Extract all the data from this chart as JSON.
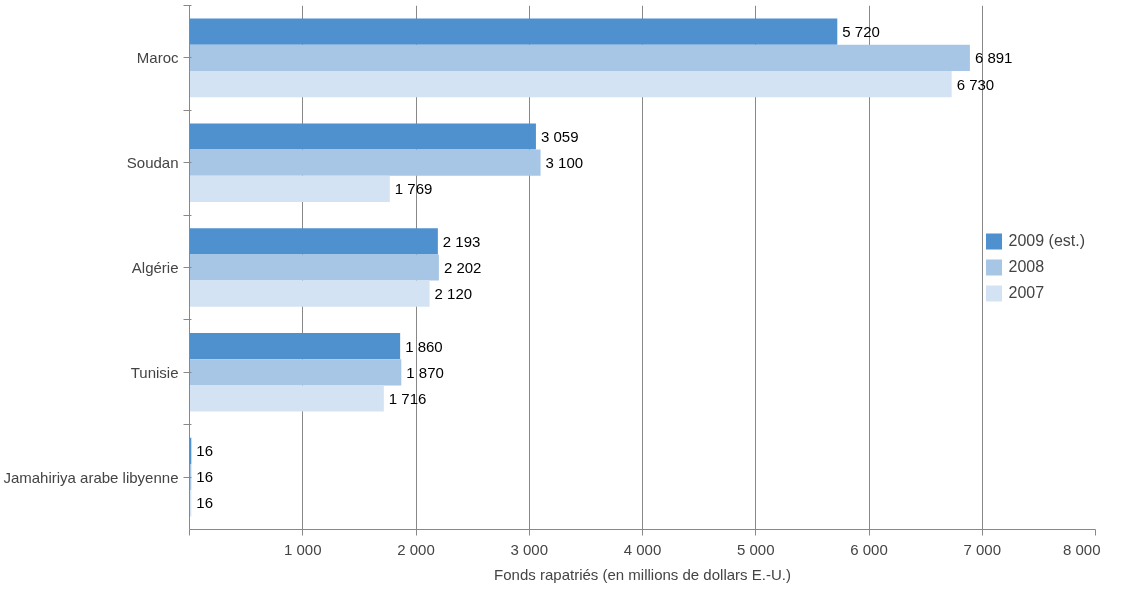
{
  "chart_data": {
    "type": "bar",
    "orientation": "horizontal",
    "xlabel": "Fonds rapatriés (en millions de dollars E.-U.)",
    "categories": [
      "Maroc",
      "Soudan",
      "Algérie",
      "Tunisie",
      "Jamahiriya arabe libyenne"
    ],
    "series": [
      {
        "name": "2009 (est.)",
        "color": "#4f90cf",
        "values": [
          5720,
          3059,
          2193,
          1860,
          16
        ],
        "value_labels": [
          "5 720",
          "3 059",
          "2 193",
          "1 860",
          "16"
        ]
      },
      {
        "name": "2008",
        "color": "#a7c6e6",
        "values": [
          6891,
          3100,
          2202,
          1870,
          16
        ],
        "value_labels": [
          "6 891",
          "3 100",
          "2 202",
          "1 870",
          "16"
        ]
      },
      {
        "name": "2007",
        "color": "#d4e3f4",
        "values": [
          6730,
          1769,
          2120,
          1716,
          16
        ],
        "value_labels": [
          "6 730",
          "1 769",
          "2 120",
          "1 716",
          "16"
        ]
      }
    ],
    "xlim": [
      0,
      8000
    ],
    "xticks": [
      {
        "value": 0,
        "label": null
      },
      {
        "value": 1000,
        "label": "1 000"
      },
      {
        "value": 2000,
        "label": "2 000"
      },
      {
        "value": 3000,
        "label": "3 000"
      },
      {
        "value": 4000,
        "label": "4 000"
      },
      {
        "value": 5000,
        "label": "5 000"
      },
      {
        "value": 6000,
        "label": "6 000"
      },
      {
        "value": 7000,
        "label": "7 000"
      },
      {
        "value": 8000,
        "label": "8 000"
      }
    ],
    "grid": "x",
    "legend": "right"
  }
}
